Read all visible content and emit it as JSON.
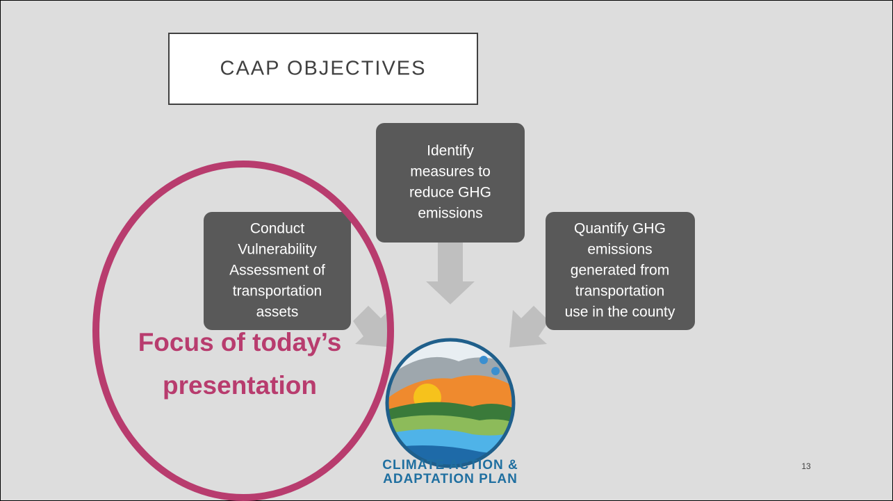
{
  "header": {
    "title": "CAAP OBJECTIVES"
  },
  "nodes": [
    {
      "lines": [
        "Identify",
        "measures to",
        "reduce GHG",
        "emissions"
      ]
    },
    {
      "lines": [
        "Conduct",
        "Vulnerability",
        "Assessment of",
        "transportation",
        "assets"
      ]
    },
    {
      "lines": [
        "Quantify GHG",
        "emissions",
        "generated from",
        "transportation",
        "use in the county"
      ]
    }
  ],
  "highlight": {
    "lines": [
      "Focus of today’s",
      "presentation"
    ]
  },
  "logo": {
    "lines": [
      "CLIMATE ACTION &",
      "ADAPTATION PLAN"
    ]
  },
  "page_number": "13"
}
